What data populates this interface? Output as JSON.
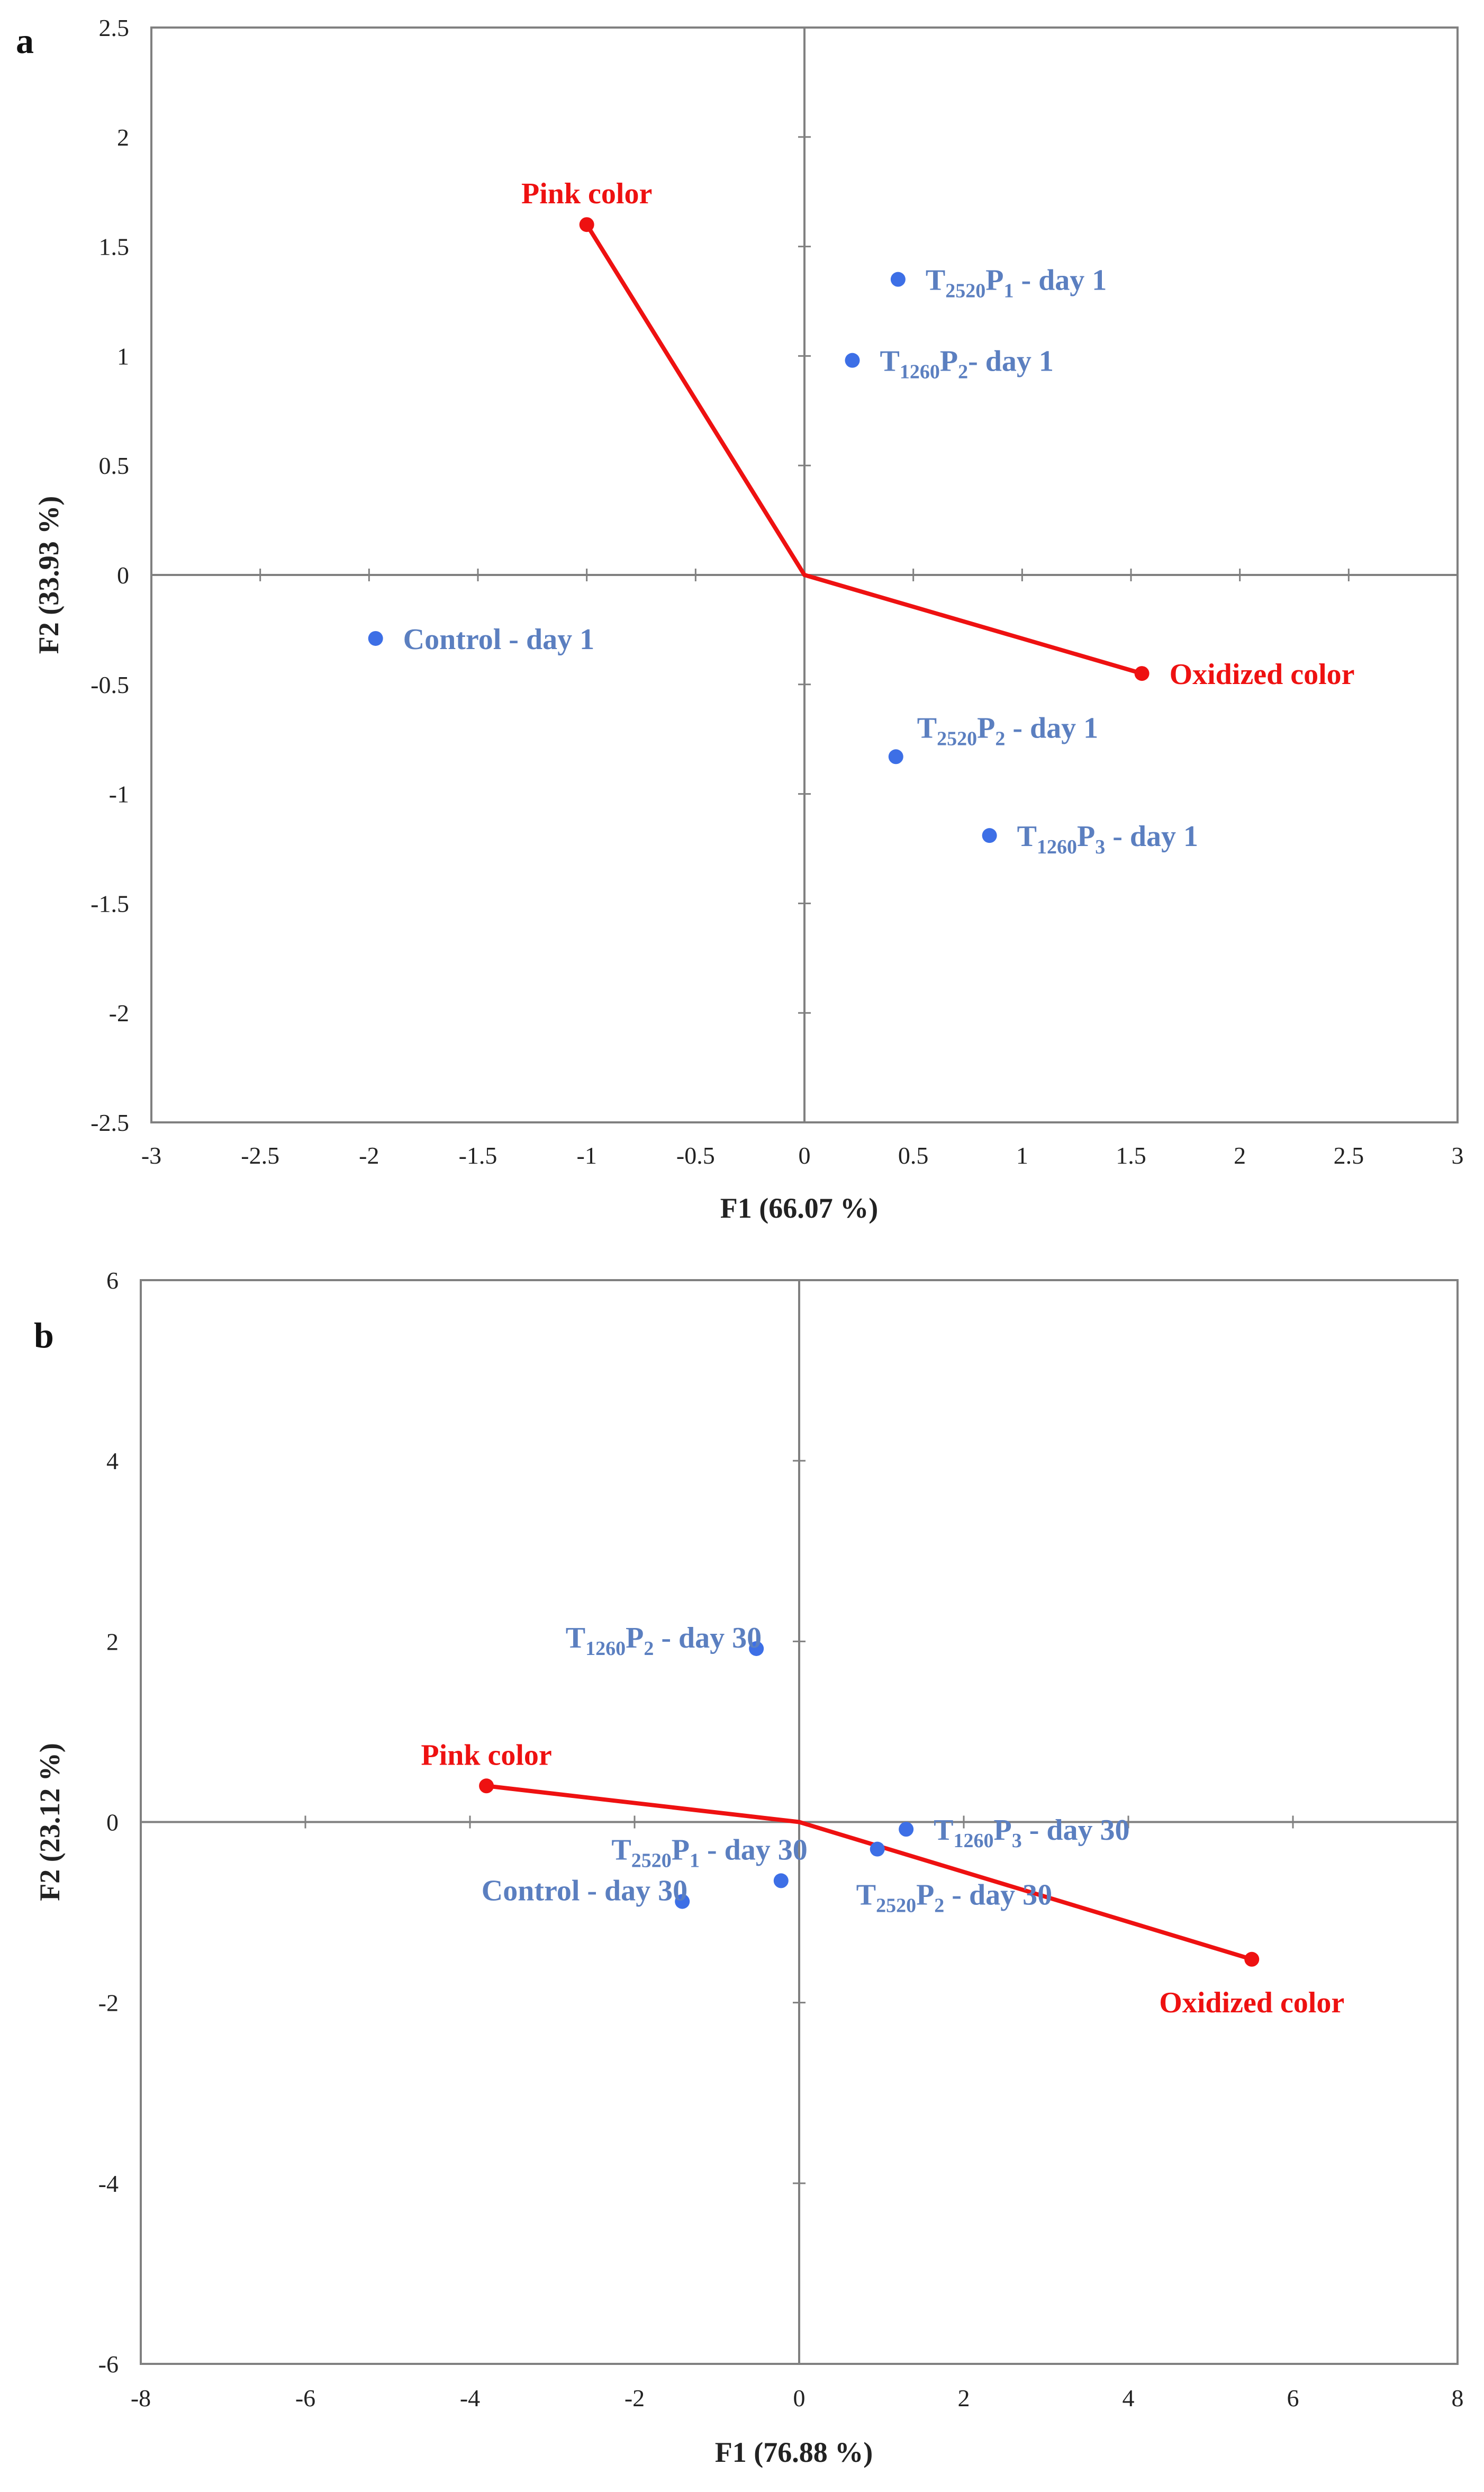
{
  "chart_data": [
    {
      "type": "scatter",
      "panel_label": "a",
      "xlabel": "F1 (66.07 %)",
      "ylabel": "F2 (33.93 %)",
      "xlim": [
        -3,
        3
      ],
      "ylim": [
        -2.5,
        2.5
      ],
      "x_ticks": [
        -3,
        -2.5,
        -2,
        -1.5,
        -1,
        -0.5,
        0,
        0.5,
        1,
        1.5,
        2,
        2.5,
        3
      ],
      "y_ticks": [
        2.5,
        2,
        1.5,
        1,
        0.5,
        0,
        -0.5,
        -1,
        -1.5,
        -2,
        -2.5
      ],
      "x_tick_labels": [
        "-3",
        "-2.5",
        "-2",
        "-1.5",
        "-1",
        "-0.5",
        "0",
        "0.5",
        "1",
        "1.5",
        "2",
        "2.5",
        "3"
      ],
      "y_tick_labels": [
        "2.5",
        "2",
        "1.5",
        "1",
        "0.5",
        "0",
        "-0.5",
        "-1",
        "-1.5",
        "-2",
        "-2.5"
      ],
      "variables": [
        {
          "name": "Pink color",
          "x": -1.0,
          "y": 1.6,
          "label_pos": "above"
        },
        {
          "name": "Oxidized color",
          "x": 1.55,
          "y": -0.45,
          "label_pos": "right"
        }
      ],
      "observations": [
        {
          "T": "T",
          "t_sub": "2520",
          "P": "P",
          "p_sub": "1",
          "tail": " - day 1",
          "x": 0.43,
          "y": 1.35,
          "label_pos": "right"
        },
        {
          "T": "T",
          "t_sub": "1260",
          "P": "P",
          "p_sub": "2",
          "tail": "- day 1",
          "x": 0.22,
          "y": 0.98,
          "label_pos": "right"
        },
        {
          "T": "Control - day 1",
          "t_sub": "",
          "P": "",
          "p_sub": "",
          "tail": "",
          "x": -1.97,
          "y": -0.29,
          "label_pos": "right"
        },
        {
          "T": "T",
          "t_sub": "2520",
          "P": "P",
          "p_sub": "2",
          "tail": " - day 1",
          "x": 0.42,
          "y": -0.83,
          "label_pos": "upper-right"
        },
        {
          "T": "T",
          "t_sub": "1260",
          "P": "P",
          "p_sub": "3",
          "tail": " - day 1",
          "x": 0.85,
          "y": -1.19,
          "label_pos": "right"
        }
      ],
      "colors": {
        "variable": "#ee1111",
        "observation": "#3d6fe6",
        "observation_text": "#5b7fc0",
        "axis": "#808080"
      }
    },
    {
      "type": "scatter",
      "panel_label": "b",
      "xlabel": "F1 (76.88 %)",
      "ylabel": "F2 (23.12 %)",
      "xlim": [
        -8,
        8
      ],
      "ylim": [
        -6,
        6
      ],
      "x_ticks": [
        -8,
        -6,
        -4,
        -2,
        0,
        2,
        4,
        6,
        8
      ],
      "y_ticks": [
        6,
        4,
        2,
        0,
        -2,
        -4,
        -6
      ],
      "x_tick_labels": [
        "-8",
        "-6",
        "-4",
        "-2",
        "0",
        "2",
        "4",
        "6",
        "8"
      ],
      "y_tick_labels": [
        "6",
        "4",
        "2",
        "0",
        "-2",
        "-4",
        "-6"
      ],
      "variables": [
        {
          "name": "Pink color",
          "x": -3.8,
          "y": 0.4,
          "label_pos": "above"
        },
        {
          "name": "Oxidized color",
          "x": 5.5,
          "y": -1.52,
          "label_pos": "below"
        }
      ],
      "observations": [
        {
          "T": "T",
          "t_sub": "1260",
          "P": "P",
          "p_sub": "2",
          "tail": " - day 30",
          "x": -0.52,
          "y": 1.92,
          "label_pos": "left"
        },
        {
          "T": "T",
          "t_sub": "2520",
          "P": "P",
          "p_sub": "1",
          "tail": " - day 30",
          "x": -0.22,
          "y": -0.65,
          "label_pos": "upper-left"
        },
        {
          "T": "Control - day 30",
          "t_sub": "",
          "P": "",
          "p_sub": "",
          "tail": "",
          "x": -1.42,
          "y": -0.88,
          "label_pos": "left"
        },
        {
          "T": "T",
          "t_sub": "1260",
          "P": "P",
          "p_sub": "3",
          "tail": " - day 30",
          "x": 1.3,
          "y": -0.08,
          "label_pos": "right"
        },
        {
          "T": "T",
          "t_sub": "2520",
          "P": "P",
          "p_sub": "2",
          "tail": " - day 30",
          "x": 0.95,
          "y": -0.3,
          "label_pos": "lower-right"
        }
      ],
      "colors": {
        "variable": "#ee1111",
        "observation": "#3d6fe6",
        "observation_text": "#5b7fc0",
        "axis": "#808080"
      }
    }
  ]
}
